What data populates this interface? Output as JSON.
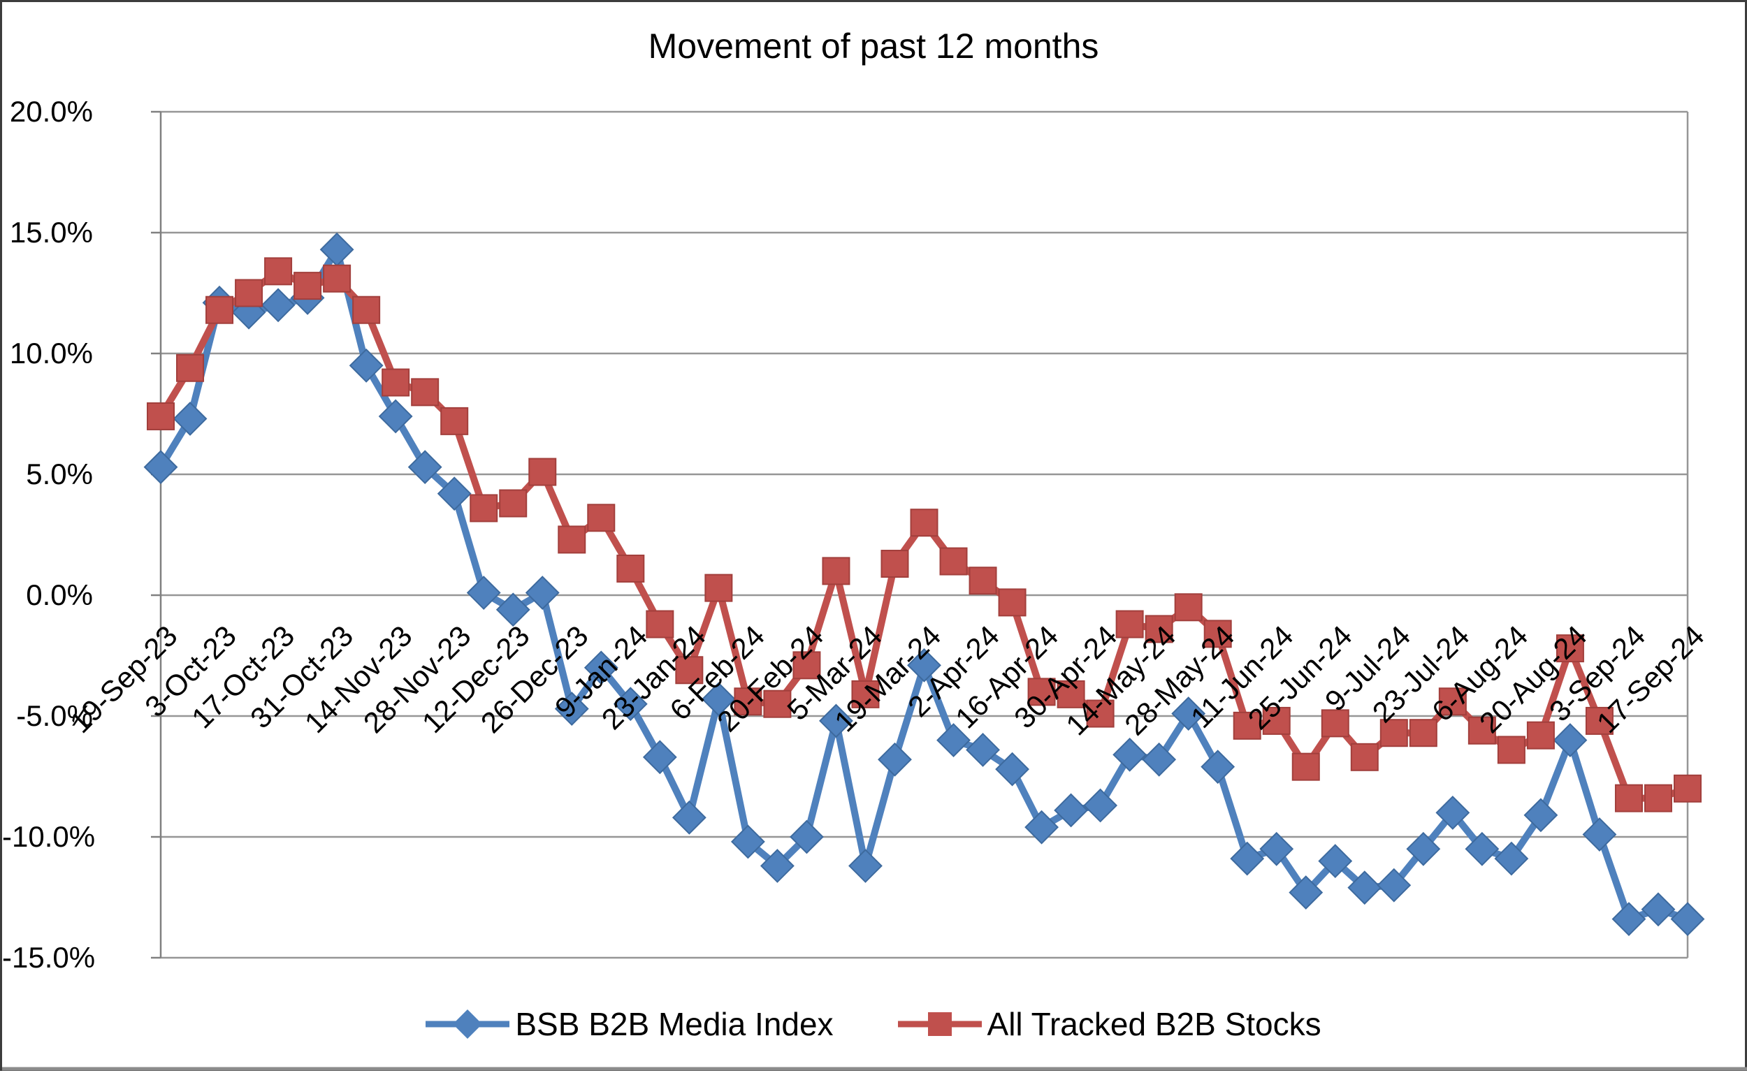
{
  "title": "Movement of past 12 months",
  "y_axis": {
    "tick_labels": [
      "20.0%",
      "15.0%",
      "10.0%",
      "5.0%",
      "0.0%",
      "-5.0%",
      "-10.0%",
      "-15.0%"
    ],
    "max": 20,
    "min": -15,
    "step": 5
  },
  "x_axis": {
    "tick_labels": [
      "19-Sep-23",
      "3-Oct-23",
      "17-Oct-23",
      "31-Oct-23",
      "14-Nov-23",
      "28-Nov-23",
      "12-Dec-23",
      "26-Dec-23",
      "9-Jan-24",
      "23-Jan-24",
      "6-Feb-24",
      "20-Feb-24",
      "5-Mar-24",
      "19-Mar-24",
      "2-Apr-24",
      "16-Apr-24",
      "30-Apr-24",
      "14-May-24",
      "28-May-24",
      "11-Jun-24",
      "25-Jun-24",
      "9-Jul-24",
      "23-Jul-24",
      "6-Aug-24",
      "20-Aug-24",
      "3-Sep-24",
      "17-Sep-24"
    ]
  },
  "legend": {
    "items": [
      {
        "label": "BSB B2B Media Index",
        "marker": "diamond",
        "color": "#4F81BD"
      },
      {
        "label": "All Tracked B2B Stocks",
        "marker": "square",
        "color": "#C0504D"
      }
    ]
  },
  "colors": {
    "blue_series": "#4F81BD",
    "blue_edge": "#3D6A9E",
    "red_series": "#C0504D",
    "red_edge": "#A23F3C",
    "gridline": "#969696",
    "axis": "#808080",
    "text": "#000000"
  },
  "chart_data": {
    "type": "line",
    "title": "Movement of past 12 months",
    "xlabel": "",
    "ylabel": "",
    "ylim": [
      -15,
      20
    ],
    "ytick_step": 5,
    "grid": "horizontal",
    "legend_position": "bottom",
    "x_label_rotation": 45,
    "x_tick_every": 2,
    "x": [
      "19-Sep-23",
      "26-Sep-23",
      "3-Oct-23",
      "10-Oct-23",
      "17-Oct-23",
      "24-Oct-23",
      "31-Oct-23",
      "7-Nov-23",
      "14-Nov-23",
      "21-Nov-23",
      "28-Nov-23",
      "5-Dec-23",
      "12-Dec-23",
      "19-Dec-23",
      "26-Dec-23",
      "2-Jan-24",
      "9-Jan-24",
      "16-Jan-24",
      "23-Jan-24",
      "30-Jan-24",
      "6-Feb-24",
      "13-Feb-24",
      "20-Feb-24",
      "27-Feb-24",
      "5-Mar-24",
      "12-Mar-24",
      "19-Mar-24",
      "26-Mar-24",
      "2-Apr-24",
      "9-Apr-24",
      "16-Apr-24",
      "23-Apr-24",
      "30-Apr-24",
      "7-May-24",
      "14-May-24",
      "21-May-24",
      "28-May-24",
      "4-Jun-24",
      "11-Jun-24",
      "18-Jun-24",
      "25-Jun-24",
      "2-Jul-24",
      "9-Jul-24",
      "16-Jul-24",
      "23-Jul-24",
      "30-Jul-24",
      "6-Aug-24",
      "13-Aug-24",
      "20-Aug-24",
      "27-Aug-24",
      "3-Sep-24",
      "10-Sep-24",
      "17-Sep-24"
    ],
    "series": [
      {
        "name": "BSB B2B Media Index",
        "color": "#4F81BD",
        "marker": "diamond",
        "values": [
          5.3,
          7.3,
          12.1,
          11.7,
          12.0,
          12.3,
          14.3,
          9.5,
          7.4,
          5.3,
          4.2,
          0.1,
          -0.6,
          0.1,
          -4.7,
          -3.0,
          -4.5,
          -6.7,
          -9.2,
          -4.3,
          -10.2,
          -11.2,
          -10.0,
          -5.2,
          -11.2,
          -6.8,
          -2.9,
          -6.0,
          -6.4,
          -7.2,
          -9.6,
          -8.9,
          -8.7,
          -6.6,
          -6.8,
          -4.9,
          -7.1,
          -10.9,
          -10.5,
          -12.3,
          -11.0,
          -12.1,
          -12.0,
          -10.5,
          -9.0,
          -10.5,
          -10.9,
          -9.1,
          -6.0,
          -9.9,
          -13.4,
          -13.0,
          -13.4
        ]
      },
      {
        "name": "All Tracked B2B Stocks",
        "color": "#C0504D",
        "marker": "square",
        "values": [
          7.4,
          9.4,
          11.8,
          12.5,
          13.4,
          12.8,
          13.1,
          11.8,
          8.8,
          8.4,
          7.2,
          3.6,
          3.8,
          5.1,
          2.3,
          3.2,
          1.1,
          -1.2,
          -3.1,
          0.3,
          -4.4,
          -4.5,
          -2.9,
          1.0,
          -4.1,
          1.3,
          3.0,
          1.4,
          0.6,
          -0.3,
          -4.0,
          -4.1,
          -4.9,
          -1.2,
          -1.4,
          -0.5,
          -1.6,
          -5.4,
          -5.2,
          -7.1,
          -5.3,
          -6.7,
          -5.7,
          -5.7,
          -4.4,
          -5.6,
          -6.4,
          -5.8,
          -2.2,
          -5.2,
          -8.4,
          -8.4,
          -8.0
        ]
      }
    ]
  }
}
